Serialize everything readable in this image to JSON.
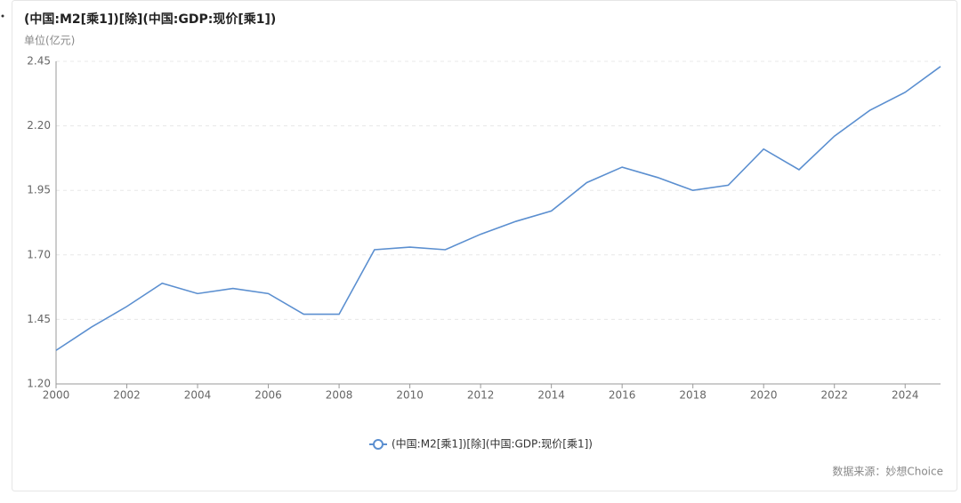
{
  "chart_data": {
    "type": "line",
    "title": "(中国:M2[乘1])[除](中国:GDP:现价[乘1])",
    "y_unit": "单位(亿元)",
    "source": "数据来源：妙想Choice",
    "x": [
      2000,
      2001,
      2002,
      2003,
      2004,
      2005,
      2006,
      2007,
      2008,
      2009,
      2010,
      2011,
      2012,
      2013,
      2014,
      2015,
      2016,
      2017,
      2018,
      2019,
      2020,
      2021,
      2022,
      2023,
      2024,
      2025
    ],
    "series": [
      {
        "name": "(中国:M2[乘1])[除](中国:GDP:现价[乘1])",
        "color": "#5b8fd0",
        "values": [
          1.33,
          1.42,
          1.5,
          1.59,
          1.55,
          1.57,
          1.55,
          1.47,
          1.47,
          1.72,
          1.73,
          1.72,
          1.78,
          1.83,
          1.87,
          1.98,
          2.04,
          2.0,
          1.95,
          1.97,
          2.11,
          2.03,
          2.16,
          2.26,
          2.33,
          2.43
        ]
      }
    ],
    "xlim": [
      2000,
      2025
    ],
    "xticks": [
      2000,
      2002,
      2004,
      2006,
      2008,
      2010,
      2012,
      2014,
      2016,
      2018,
      2020,
      2022,
      2024
    ],
    "ylim": [
      1.2,
      2.45
    ],
    "yticks": [
      {
        "value": 1.2,
        "label": "1.20"
      },
      {
        "value": 1.45,
        "label": "1.45"
      },
      {
        "value": 1.7,
        "label": "1.70"
      },
      {
        "value": 1.95,
        "label": "1.95"
      },
      {
        "value": 2.2,
        "label": "2.20"
      },
      {
        "value": 2.45,
        "label": "2.45"
      }
    ],
    "grid": true
  }
}
